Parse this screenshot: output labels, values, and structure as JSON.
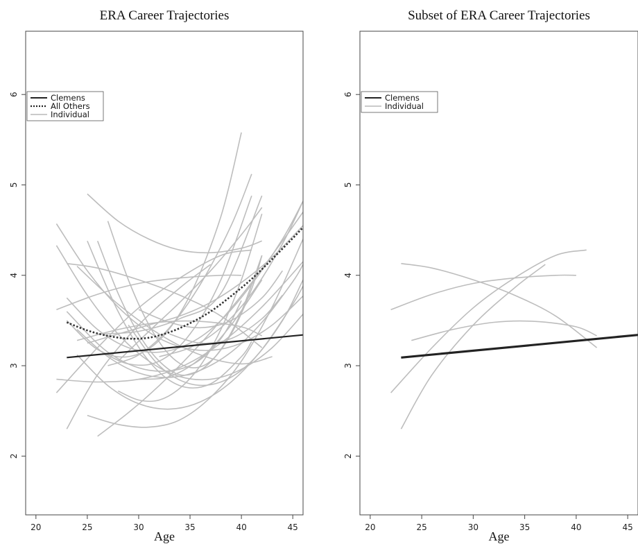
{
  "chart_data": [
    {
      "type": "line",
      "title": "ERA Career Trajectories",
      "xlabel": "Age",
      "ylabel": "",
      "xlim": [
        19,
        46
      ],
      "ylim": [
        1.35,
        6.7
      ],
      "xticks": [
        20,
        25,
        30,
        35,
        40,
        45
      ],
      "yticks": [
        2,
        3,
        4,
        5,
        6
      ],
      "legend": {
        "position": "top-left",
        "entries": [
          {
            "label": "Clemens",
            "style": "solid-black"
          },
          {
            "label": "All Others",
            "style": "dotted-black"
          },
          {
            "label": "Individual",
            "style": "gray"
          }
        ]
      },
      "series": [
        {
          "name": "Clemens",
          "role": "clemens",
          "x": [
            23,
            46
          ],
          "y": [
            3.09,
            3.34
          ]
        },
        {
          "name": "All Others",
          "role": "others",
          "x": [
            23,
            25,
            27,
            29,
            31,
            33,
            35,
            37,
            39,
            41,
            43,
            45,
            46
          ],
          "y": [
            3.48,
            3.39,
            3.33,
            3.3,
            3.31,
            3.37,
            3.47,
            3.6,
            3.77,
            3.96,
            4.18,
            4.41,
            4.53
          ]
        },
        {
          "role": "individual",
          "x": [
            22,
            26,
            30,
            34,
            38,
            40
          ],
          "y": [
            3.62,
            3.79,
            3.91,
            3.97,
            4.0,
            4.0
          ]
        },
        {
          "role": "individual",
          "x": [
            22,
            26,
            30,
            34,
            38,
            41
          ],
          "y": [
            2.7,
            3.2,
            3.64,
            3.97,
            4.22,
            4.28
          ]
        },
        {
          "role": "individual",
          "x": [
            23,
            26,
            30,
            34,
            37
          ],
          "y": [
            2.3,
            2.9,
            3.45,
            3.86,
            4.12
          ]
        },
        {
          "role": "individual",
          "x": [
            23,
            26,
            30,
            34,
            38,
            42
          ],
          "y": [
            4.13,
            4.08,
            3.95,
            3.78,
            3.55,
            3.2
          ]
        },
        {
          "role": "individual",
          "x": [
            24,
            28,
            32,
            36,
            40,
            42
          ],
          "y": [
            3.28,
            3.4,
            3.48,
            3.49,
            3.43,
            3.33
          ]
        },
        {
          "role": "individual",
          "x": [
            22,
            25,
            28,
            31,
            34,
            37,
            40,
            43,
            46
          ],
          "y": [
            4.57,
            4.05,
            3.65,
            3.37,
            3.21,
            3.17,
            3.25,
            3.45,
            3.77
          ]
        },
        {
          "role": "individual",
          "x": [
            22,
            25,
            28,
            31,
            34,
            37,
            40,
            43,
            46
          ],
          "y": [
            4.33,
            3.78,
            3.35,
            3.05,
            2.88,
            2.85,
            2.96,
            3.2,
            3.57
          ]
        },
        {
          "role": "individual",
          "x": [
            22,
            26,
            30,
            34,
            38,
            42,
            46
          ],
          "y": [
            2.85,
            2.82,
            2.85,
            2.98,
            3.25,
            3.65,
            4.15
          ]
        },
        {
          "role": "individual",
          "x": [
            25,
            28,
            31,
            34,
            37,
            40,
            42
          ],
          "y": [
            4.9,
            4.6,
            4.4,
            4.28,
            4.25,
            4.3,
            4.38
          ]
        },
        {
          "role": "individual",
          "x": [
            25,
            28,
            31,
            34,
            37,
            40,
            41
          ],
          "y": [
            4.38,
            3.6,
            3.05,
            2.78,
            2.8,
            3.1,
            3.27
          ]
        },
        {
          "role": "individual",
          "x": [
            26,
            28,
            30,
            32,
            34,
            36,
            38,
            40,
            42
          ],
          "y": [
            4.38,
            3.8,
            3.35,
            3.05,
            2.9,
            2.95,
            3.18,
            3.6,
            4.22
          ]
        },
        {
          "role": "individual",
          "x": [
            27,
            29,
            31,
            33,
            35,
            37,
            39,
            41,
            42
          ],
          "y": [
            4.6,
            3.95,
            3.45,
            3.12,
            2.98,
            3.05,
            3.35,
            3.85,
            4.22
          ]
        },
        {
          "role": "individual",
          "x": [
            26,
            29,
            32,
            35,
            38,
            41,
            44,
            46
          ],
          "y": [
            2.22,
            2.48,
            2.78,
            3.12,
            3.5,
            3.92,
            4.38,
            4.7
          ]
        },
        {
          "role": "individual",
          "x": [
            24,
            27,
            30,
            33,
            36,
            39,
            42,
            45,
            46
          ],
          "y": [
            3.4,
            3.1,
            2.92,
            2.87,
            2.95,
            3.15,
            3.48,
            3.93,
            4.12
          ]
        },
        {
          "role": "individual",
          "x": [
            24,
            27,
            30,
            33,
            36,
            39,
            42,
            45,
            46
          ],
          "y": [
            3.12,
            2.78,
            2.58,
            2.52,
            2.6,
            2.82,
            3.18,
            3.68,
            3.88
          ]
        },
        {
          "role": "individual",
          "x": [
            25,
            28,
            31,
            34,
            37,
            40,
            43,
            46
          ],
          "y": [
            2.45,
            2.35,
            2.32,
            2.4,
            2.65,
            3.05,
            3.65,
            4.4
          ]
        },
        {
          "role": "individual",
          "x": [
            23,
            26,
            29,
            32,
            35,
            38,
            40
          ],
          "y": [
            3.5,
            3.18,
            3.1,
            3.28,
            3.78,
            4.65,
            5.58
          ]
        },
        {
          "role": "individual",
          "x": [
            26,
            29,
            32,
            35,
            38,
            41
          ],
          "y": [
            3.18,
            3.02,
            3.05,
            3.35,
            3.95,
            4.88
          ]
        },
        {
          "role": "individual",
          "x": [
            27,
            30,
            33,
            36,
            39,
            41
          ],
          "y": [
            3.0,
            3.12,
            3.42,
            3.9,
            4.55,
            5.12
          ]
        },
        {
          "role": "individual",
          "x": [
            26,
            30,
            34,
            38,
            42
          ],
          "y": [
            3.35,
            3.38,
            3.52,
            3.8,
            4.88
          ]
        },
        {
          "role": "individual",
          "x": [
            25,
            28,
            31,
            34,
            37,
            40,
            43,
            46
          ],
          "y": [
            3.25,
            3.35,
            3.45,
            3.55,
            3.7,
            3.92,
            4.2,
            4.55
          ]
        },
        {
          "role": "individual",
          "x": [
            28,
            31,
            34,
            37,
            40,
            42
          ],
          "y": [
            3.05,
            3.38,
            3.7,
            4.05,
            4.45,
            4.75
          ]
        },
        {
          "role": "individual",
          "x": [
            23,
            27,
            31,
            35,
            38,
            40
          ],
          "y": [
            3.6,
            3.15,
            2.95,
            3.0,
            3.3,
            3.72
          ]
        },
        {
          "role": "individual",
          "x": [
            29,
            32,
            35,
            38,
            41,
            44,
            46
          ],
          "y": [
            3.45,
            3.0,
            2.8,
            2.82,
            3.05,
            3.5,
            3.95
          ]
        },
        {
          "role": "individual",
          "x": [
            24,
            28,
            32,
            36,
            40,
            43
          ],
          "y": [
            4.1,
            3.68,
            3.35,
            3.12,
            3.02,
            3.1
          ]
        },
        {
          "role": "individual",
          "x": [
            32,
            35,
            38,
            41,
            44,
            46
          ],
          "y": [
            3.1,
            3.2,
            3.42,
            3.8,
            4.35,
            4.82
          ]
        },
        {
          "role": "individual",
          "x": [
            30,
            33,
            36,
            39,
            42
          ],
          "y": [
            2.85,
            2.88,
            3.08,
            3.45,
            3.95
          ]
        },
        {
          "role": "individual",
          "x": [
            28,
            30,
            32,
            34,
            36,
            38,
            40,
            42
          ],
          "y": [
            2.72,
            2.62,
            2.62,
            2.75,
            3.0,
            3.4,
            3.95,
            4.68
          ]
        },
        {
          "role": "individual",
          "x": [
            23,
            26,
            29,
            32,
            35,
            38,
            41,
            44,
            46
          ],
          "y": [
            3.75,
            3.4,
            3.2,
            3.15,
            3.25,
            3.5,
            3.9,
            4.4,
            4.82
          ]
        },
        {
          "role": "individual",
          "x": [
            30,
            33,
            36,
            39,
            42,
            44
          ],
          "y": [
            3.62,
            3.48,
            3.42,
            3.5,
            3.75,
            4.05
          ]
        },
        {
          "role": "individual",
          "x": [
            33,
            36,
            39,
            42,
            44
          ],
          "y": [
            3.35,
            3.25,
            3.3,
            3.52,
            3.78
          ]
        }
      ]
    },
    {
      "type": "line",
      "title": "Subset of ERA Career Trajectories",
      "xlabel": "Age",
      "ylabel": "",
      "xlim": [
        19,
        46
      ],
      "ylim": [
        1.35,
        6.7
      ],
      "xticks": [
        20,
        25,
        30,
        35,
        40,
        45
      ],
      "yticks": [
        2,
        3,
        4,
        5,
        6
      ],
      "legend": {
        "position": "top-left",
        "entries": [
          {
            "label": "Clemens",
            "style": "solid-black"
          },
          {
            "label": "Individual",
            "style": "gray"
          }
        ]
      },
      "series": [
        {
          "name": "Clemens",
          "role": "clemens",
          "x": [
            23,
            46
          ],
          "y": [
            3.09,
            3.34
          ]
        },
        {
          "role": "individual",
          "x": [
            22,
            26,
            30,
            34,
            38,
            40
          ],
          "y": [
            3.62,
            3.79,
            3.91,
            3.97,
            4.0,
            4.0
          ]
        },
        {
          "role": "individual",
          "x": [
            22,
            26,
            30,
            34,
            38,
            41
          ],
          "y": [
            2.7,
            3.2,
            3.64,
            3.97,
            4.22,
            4.28
          ]
        },
        {
          "role": "individual",
          "x": [
            23,
            26,
            30,
            34,
            37
          ],
          "y": [
            2.3,
            2.9,
            3.45,
            3.86,
            4.12
          ]
        },
        {
          "role": "individual",
          "x": [
            23,
            26,
            30,
            34,
            38,
            42
          ],
          "y": [
            4.13,
            4.08,
            3.95,
            3.78,
            3.55,
            3.2
          ]
        },
        {
          "role": "individual",
          "x": [
            24,
            28,
            32,
            36,
            40,
            42
          ],
          "y": [
            3.28,
            3.4,
            3.48,
            3.49,
            3.43,
            3.33
          ]
        }
      ]
    }
  ]
}
